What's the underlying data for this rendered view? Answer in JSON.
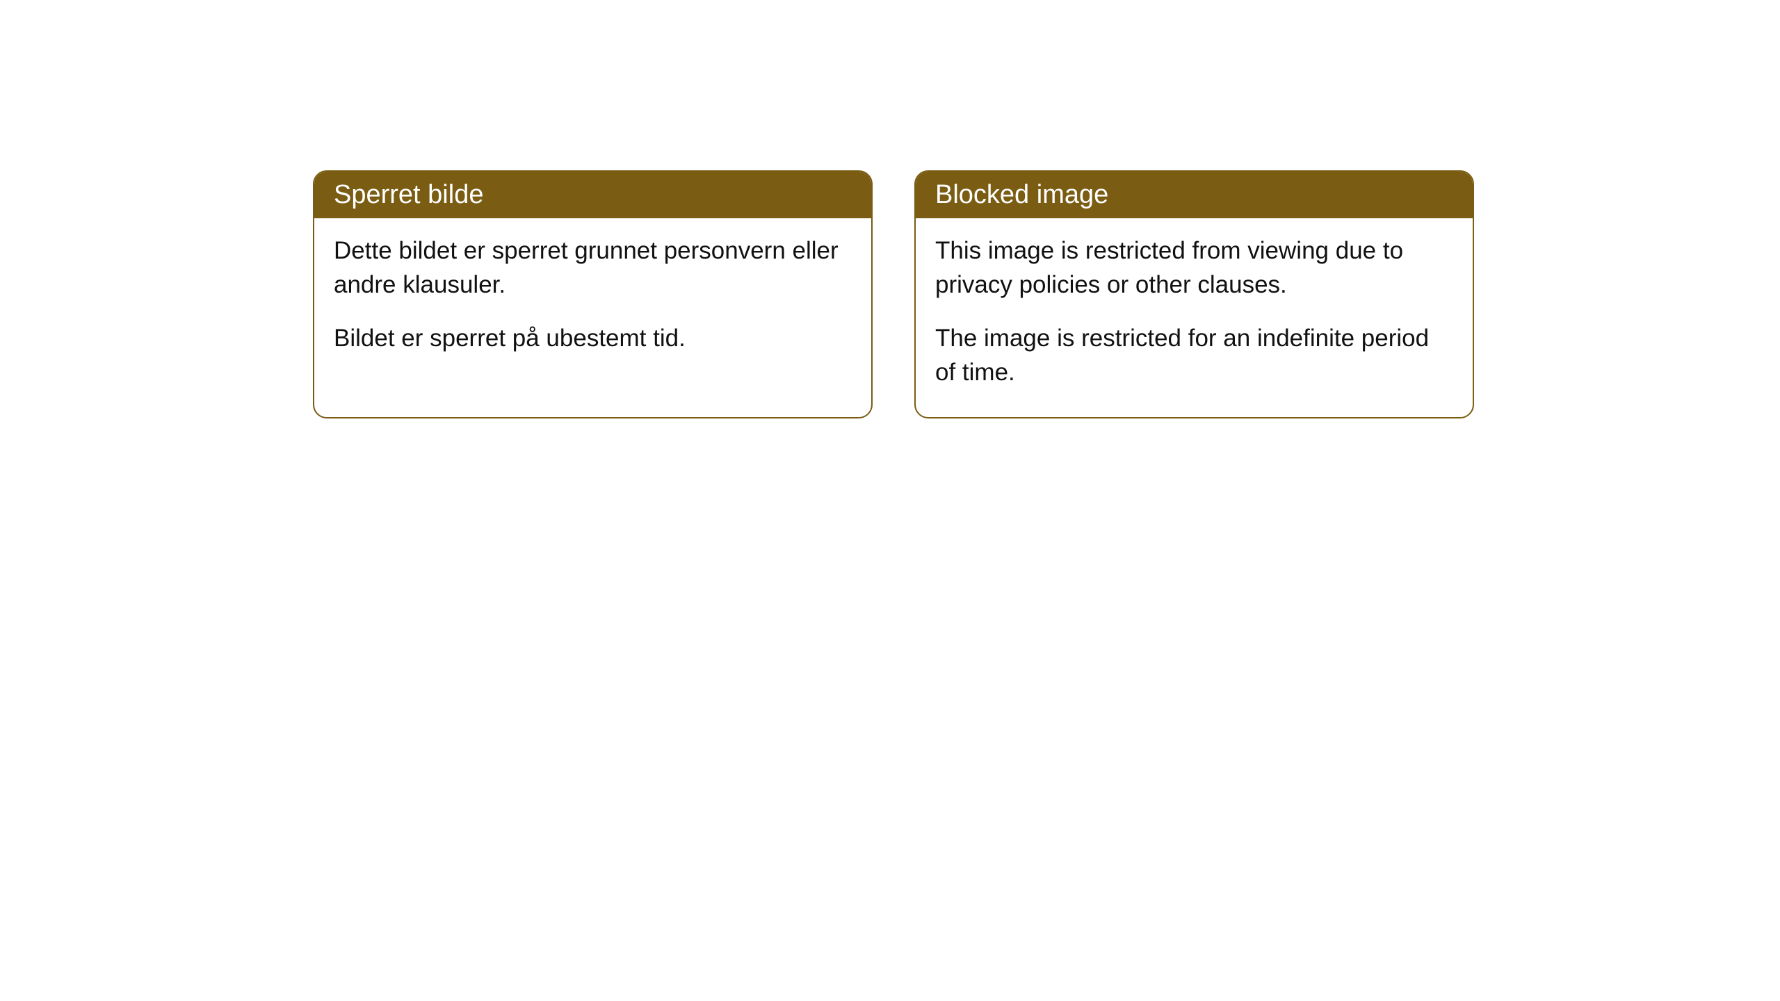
{
  "cards": [
    {
      "title": "Sperret bilde",
      "paragraph1": "Dette bildet er sperret grunnet personvern eller andre klausuler.",
      "paragraph2": "Bildet er sperret på ubestemt tid."
    },
    {
      "title": "Blocked image",
      "paragraph1": "This image is restricted from viewing due to privacy policies or other clauses.",
      "paragraph2": "The image is restricted for an indefinite period of time."
    }
  ],
  "styling": {
    "header_background": "#7a5c13",
    "header_text_color": "#ffffff",
    "border_color": "#7a5c13",
    "body_background": "#ffffff",
    "body_text_color": "#111111",
    "border_radius": 20,
    "header_fontsize": 38,
    "body_fontsize": 35
  }
}
